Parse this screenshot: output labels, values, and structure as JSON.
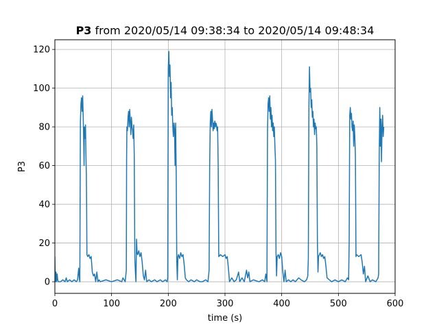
{
  "chart_data": {
    "type": "line",
    "title": {
      "bold": "P3",
      "rest": " from 2020/05/14 09:38:34 to 2020/05/14 09:48:34"
    },
    "xlabel": "time (s)",
    "ylabel": "P3",
    "xlim": [
      0,
      600
    ],
    "ylim": [
      -6,
      125
    ],
    "xticks": [
      0,
      100,
      200,
      300,
      400,
      500,
      600
    ],
    "yticks": [
      0,
      20,
      40,
      60,
      80,
      100,
      120
    ],
    "grid": true,
    "series": [
      {
        "color": "#1f77b4",
        "points": [
          [
            0,
            13
          ],
          [
            0.5,
            2
          ],
          [
            1,
            0
          ],
          [
            2,
            5
          ],
          [
            3,
            0
          ],
          [
            4,
            4
          ],
          [
            5,
            1
          ],
          [
            6,
            0
          ],
          [
            10,
            0
          ],
          [
            14,
            1
          ],
          [
            18,
            0
          ],
          [
            20,
            2
          ],
          [
            22,
            0
          ],
          [
            26,
            1
          ],
          [
            30,
            0
          ],
          [
            34,
            1
          ],
          [
            38,
            0
          ],
          [
            40,
            1
          ],
          [
            42,
            7
          ],
          [
            43,
            2
          ],
          [
            44,
            0
          ],
          [
            45,
            82
          ],
          [
            46,
            92
          ],
          [
            47,
            95
          ],
          [
            48,
            88
          ],
          [
            49,
            96
          ],
          [
            50,
            85
          ],
          [
            51,
            70
          ],
          [
            51.5,
            60
          ],
          [
            52,
            80
          ],
          [
            53,
            74
          ],
          [
            54,
            81
          ],
          [
            55,
            62
          ],
          [
            55.5,
            56
          ],
          [
            56,
            40
          ],
          [
            56.5,
            14
          ],
          [
            58,
            13
          ],
          [
            60,
            14
          ],
          [
            62,
            12
          ],
          [
            64,
            13
          ],
          [
            66,
            5
          ],
          [
            68,
            3
          ],
          [
            70,
            4
          ],
          [
            72,
            0
          ],
          [
            74,
            5
          ],
          [
            76,
            0
          ],
          [
            78,
            1
          ],
          [
            80,
            0
          ],
          [
            90,
            1
          ],
          [
            100,
            0
          ],
          [
            110,
            1
          ],
          [
            118,
            0
          ],
          [
            120,
            2
          ],
          [
            124,
            0
          ],
          [
            126,
            6
          ],
          [
            126.5,
            63
          ],
          [
            127,
            80
          ],
          [
            128,
            78
          ],
          [
            129,
            85
          ],
          [
            130,
            88
          ],
          [
            131,
            80
          ],
          [
            132,
            89
          ],
          [
            133,
            83
          ],
          [
            134,
            76
          ],
          [
            135,
            85
          ],
          [
            136,
            80
          ],
          [
            137,
            78
          ],
          [
            138,
            74
          ],
          [
            139,
            81
          ],
          [
            140,
            65
          ],
          [
            141,
            12
          ],
          [
            142,
            5
          ],
          [
            143,
            0
          ],
          [
            144,
            22
          ],
          [
            145,
            15
          ],
          [
            146,
            14
          ],
          [
            148,
            16
          ],
          [
            150,
            13
          ],
          [
            152,
            15
          ],
          [
            154,
            10
          ],
          [
            156,
            3
          ],
          [
            158,
            1
          ],
          [
            160,
            6
          ],
          [
            162,
            0
          ],
          [
            166,
            1
          ],
          [
            170,
            0
          ],
          [
            176,
            1
          ],
          [
            180,
            0
          ],
          [
            186,
            1
          ],
          [
            190,
            0
          ],
          [
            195,
            1
          ],
          [
            198,
            0
          ],
          [
            199,
            2
          ],
          [
            200,
            110
          ],
          [
            201,
            119
          ],
          [
            202,
            106
          ],
          [
            203,
            112
          ],
          [
            204,
            95
          ],
          [
            205,
            103
          ],
          [
            206,
            86
          ],
          [
            207,
            90
          ],
          [
            208,
            80
          ],
          [
            209,
            75
          ],
          [
            210,
            82
          ],
          [
            211,
            79
          ],
          [
            212,
            60
          ],
          [
            213,
            82
          ],
          [
            214,
            55
          ],
          [
            215,
            10
          ],
          [
            216,
            1
          ],
          [
            217,
            13
          ],
          [
            218,
            14
          ],
          [
            220,
            12
          ],
          [
            222,
            15
          ],
          [
            224,
            13
          ],
          [
            226,
            14
          ],
          [
            228,
            9
          ],
          [
            230,
            2
          ],
          [
            232,
            1
          ],
          [
            236,
            0
          ],
          [
            240,
            1
          ],
          [
            246,
            0
          ],
          [
            250,
            1
          ],
          [
            256,
            0
          ],
          [
            260,
            0
          ],
          [
            266,
            1
          ],
          [
            270,
            0
          ],
          [
            272,
            6
          ],
          [
            273,
            60
          ],
          [
            274,
            82
          ],
          [
            275,
            88
          ],
          [
            276,
            80
          ],
          [
            277,
            89
          ],
          [
            278,
            84
          ],
          [
            279,
            78
          ],
          [
            280,
            82
          ],
          [
            281,
            79
          ],
          [
            282,
            83
          ],
          [
            283,
            80
          ],
          [
            284,
            82
          ],
          [
            285,
            81
          ],
          [
            286,
            78
          ],
          [
            287,
            80
          ],
          [
            288,
            60
          ],
          [
            289,
            13
          ],
          [
            292,
            14
          ],
          [
            296,
            13
          ],
          [
            300,
            14
          ],
          [
            302,
            12
          ],
          [
            304,
            13
          ],
          [
            306,
            7
          ],
          [
            308,
            0
          ],
          [
            312,
            2
          ],
          [
            316,
            0
          ],
          [
            320,
            1
          ],
          [
            324,
            5
          ],
          [
            326,
            0
          ],
          [
            330,
            2
          ],
          [
            334,
            0
          ],
          [
            338,
            6
          ],
          [
            340,
            2
          ],
          [
            342,
            5
          ],
          [
            344,
            0
          ],
          [
            350,
            1
          ],
          [
            360,
            0
          ],
          [
            366,
            1
          ],
          [
            370,
            0
          ],
          [
            372,
            4
          ],
          [
            373,
            2
          ],
          [
            374,
            0
          ],
          [
            375,
            78
          ],
          [
            376,
            92
          ],
          [
            377,
            95
          ],
          [
            378,
            88
          ],
          [
            379,
            96
          ],
          [
            380,
            84
          ],
          [
            381,
            90
          ],
          [
            382,
            80
          ],
          [
            383,
            86
          ],
          [
            384,
            78
          ],
          [
            385,
            82
          ],
          [
            386,
            75
          ],
          [
            387,
            80
          ],
          [
            388,
            70
          ],
          [
            389,
            63
          ],
          [
            390,
            15
          ],
          [
            391,
            3
          ],
          [
            392,
            13
          ],
          [
            394,
            14
          ],
          [
            396,
            12
          ],
          [
            398,
            15
          ],
          [
            400,
            13
          ],
          [
            402,
            5
          ],
          [
            404,
            0
          ],
          [
            406,
            6
          ],
          [
            408,
            0
          ],
          [
            412,
            1
          ],
          [
            416,
            0
          ],
          [
            420,
            1
          ],
          [
            424,
            0
          ],
          [
            430,
            2
          ],
          [
            434,
            1
          ],
          [
            440,
            0
          ],
          [
            444,
            1
          ],
          [
            446,
            3
          ],
          [
            447,
            12
          ],
          [
            448,
            90
          ],
          [
            449,
            111
          ],
          [
            450,
            98
          ],
          [
            451,
            100
          ],
          [
            452,
            90
          ],
          [
            453,
            94
          ],
          [
            454,
            85
          ],
          [
            455,
            88
          ],
          [
            456,
            80
          ],
          [
            457,
            84
          ],
          [
            458,
            76
          ],
          [
            459,
            82
          ],
          [
            460,
            79
          ],
          [
            461,
            80
          ],
          [
            462,
            70
          ],
          [
            463,
            20
          ],
          [
            464,
            5
          ],
          [
            465,
            13
          ],
          [
            468,
            15
          ],
          [
            470,
            13
          ],
          [
            472,
            14
          ],
          [
            474,
            12
          ],
          [
            476,
            13
          ],
          [
            478,
            8
          ],
          [
            480,
            2
          ],
          [
            484,
            1
          ],
          [
            488,
            0
          ],
          [
            494,
            1
          ],
          [
            500,
            0
          ],
          [
            506,
            1
          ],
          [
            512,
            0
          ],
          [
            516,
            2
          ],
          [
            518,
            1
          ],
          [
            519,
            20
          ],
          [
            520,
            86
          ],
          [
            521,
            90
          ],
          [
            522,
            84
          ],
          [
            523,
            87
          ],
          [
            524,
            80
          ],
          [
            525,
            78
          ],
          [
            526,
            83
          ],
          [
            527,
            70
          ],
          [
            528,
            81
          ],
          [
            529,
            75
          ],
          [
            530,
            65
          ],
          [
            531,
            13
          ],
          [
            532,
            14
          ],
          [
            536,
            13
          ],
          [
            540,
            14
          ],
          [
            542,
            10
          ],
          [
            544,
            4
          ],
          [
            546,
            8
          ],
          [
            548,
            0
          ],
          [
            552,
            3
          ],
          [
            556,
            0
          ],
          [
            560,
            1
          ],
          [
            566,
            0
          ],
          [
            570,
            2
          ],
          [
            571,
            4
          ],
          [
            572,
            65
          ],
          [
            573,
            90
          ],
          [
            574,
            70
          ],
          [
            575,
            84
          ],
          [
            576,
            62
          ],
          [
            577,
            80
          ],
          [
            578,
            86
          ],
          [
            579,
            75
          ],
          [
            580,
            80
          ]
        ]
      }
    ]
  }
}
